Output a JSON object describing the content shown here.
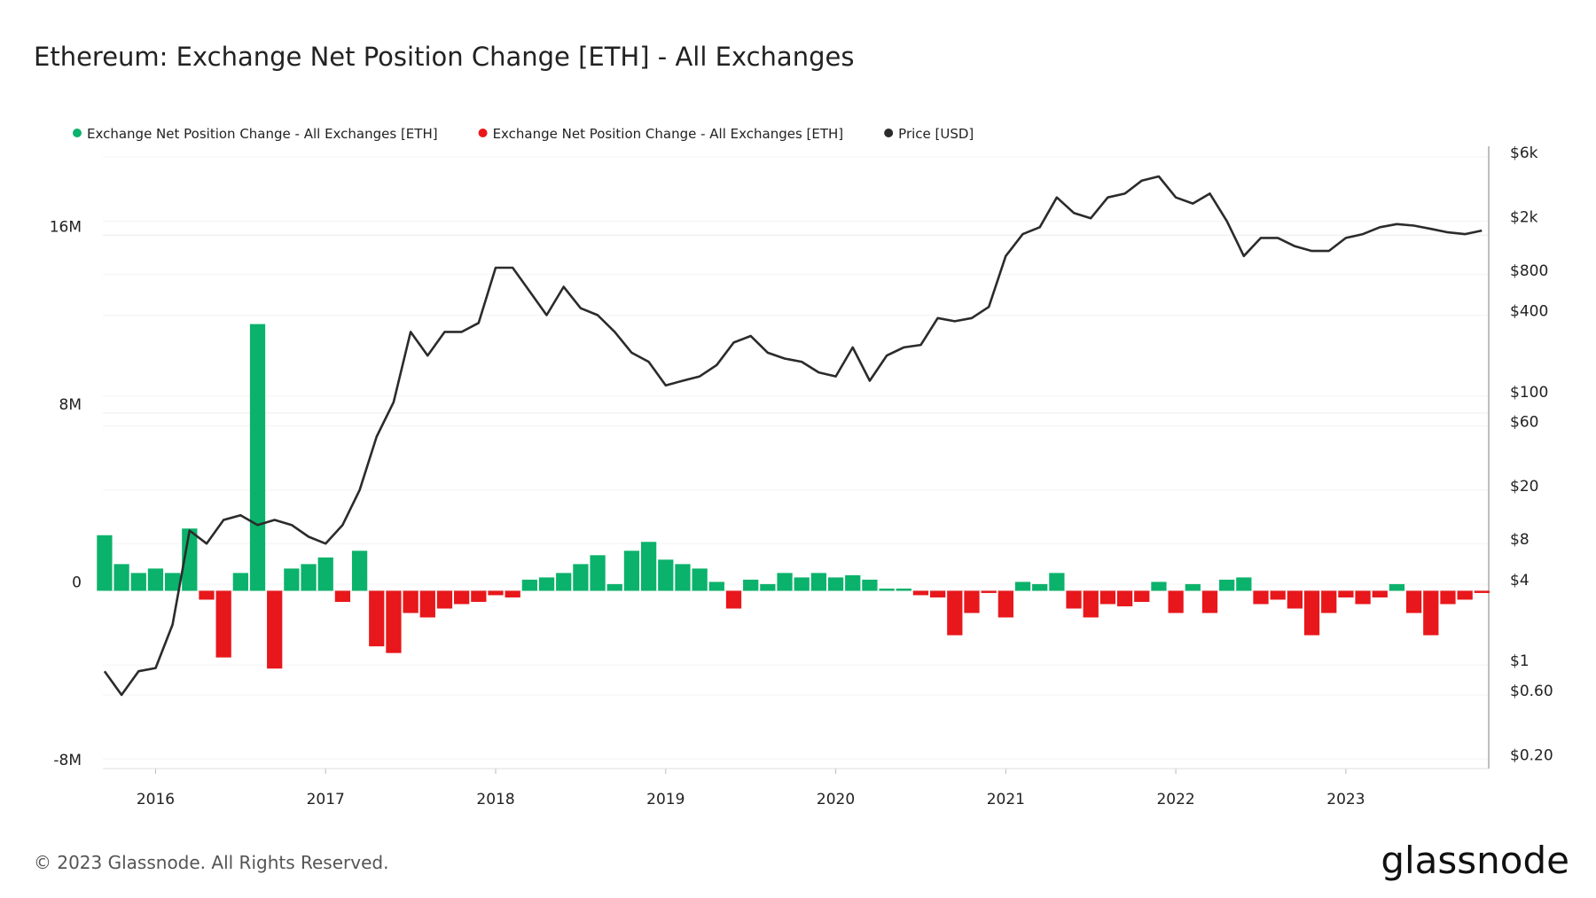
{
  "chart_data": {
    "type": "bar-line",
    "title": "Ethereum: Exchange Net Position Change [ETH] - All Exchanges",
    "footer": "© 2023 Glassnode. All Rights Reserved.",
    "brand": "glassnode",
    "x": [
      2015.7,
      2015.8,
      2015.9,
      2016.0,
      2016.1,
      2016.2,
      2016.3,
      2016.4,
      2016.5,
      2016.6,
      2016.7,
      2016.8,
      2016.9,
      2017.0,
      2017.1,
      2017.2,
      2017.3,
      2017.4,
      2017.5,
      2017.6,
      2017.7,
      2017.8,
      2017.9,
      2018.0,
      2018.1,
      2018.2,
      2018.3,
      2018.4,
      2018.5,
      2018.6,
      2018.7,
      2018.8,
      2018.9,
      2019.0,
      2019.1,
      2019.2,
      2019.3,
      2019.4,
      2019.5,
      2019.6,
      2019.7,
      2019.8,
      2019.9,
      2020.0,
      2020.1,
      2020.2,
      2020.3,
      2020.4,
      2020.5,
      2020.6,
      2020.7,
      2020.8,
      2020.9,
      2021.0,
      2021.1,
      2021.2,
      2021.3,
      2021.4,
      2021.5,
      2021.6,
      2021.7,
      2021.8,
      2021.9,
      2022.0,
      2022.1,
      2022.2,
      2022.3,
      2022.4,
      2022.5,
      2022.6,
      2022.7,
      2022.8,
      2022.9,
      2023.0,
      2023.1,
      2023.2,
      2023.3,
      2023.4,
      2023.5,
      2023.6,
      2023.7,
      2023.8
    ],
    "series": [
      {
        "name": "Exchange Net Position Change - All Exchanges [ETH]",
        "color": "#0bb26b",
        "axis": "y",
        "values": [
          2500000,
          1200000,
          800000,
          1000000,
          800000,
          2800000,
          null,
          null,
          800000,
          12000000,
          null,
          1000000,
          1200000,
          1500000,
          null,
          1800000,
          null,
          null,
          null,
          null,
          null,
          null,
          null,
          null,
          null,
          500000,
          600000,
          800000,
          1200000,
          1600000,
          300000,
          1800000,
          2200000,
          1400000,
          1200000,
          1000000,
          400000,
          null,
          500000,
          300000,
          800000,
          600000,
          800000,
          600000,
          700000,
          500000,
          100000,
          100000,
          null,
          null,
          null,
          null,
          null,
          null,
          400000,
          300000,
          800000,
          null,
          null,
          null,
          null,
          null,
          400000,
          null,
          300000,
          null,
          500000,
          600000,
          null,
          null,
          null,
          null,
          null,
          null,
          null,
          null,
          300000,
          null,
          null,
          null,
          null,
          null
        ]
      },
      {
        "name": "Exchange Net Position Change - All Exchanges [ETH]",
        "color": "#e8171b",
        "axis": "y",
        "values": [
          null,
          null,
          null,
          null,
          null,
          null,
          -400000,
          -3000000,
          null,
          null,
          -3500000,
          null,
          null,
          null,
          -500000,
          null,
          -2500000,
          -2800000,
          -1000000,
          -1200000,
          -800000,
          -600000,
          -500000,
          -200000,
          -300000,
          null,
          null,
          null,
          null,
          null,
          null,
          null,
          null,
          null,
          null,
          null,
          null,
          -800000,
          null,
          null,
          null,
          null,
          null,
          null,
          null,
          null,
          null,
          null,
          -200000,
          -300000,
          -2000000,
          -1000000,
          -100000,
          -1200000,
          null,
          null,
          null,
          -800000,
          -1200000,
          -600000,
          -700000,
          -500000,
          null,
          -1000000,
          null,
          -1000000,
          null,
          null,
          -600000,
          -400000,
          -800000,
          -2000000,
          -1000000,
          -300000,
          -600000,
          -300000,
          null,
          -1000000,
          -2000000,
          -600000,
          -400000,
          -100000
        ]
      },
      {
        "name": "Price [USD]",
        "color": "#2b2b2b",
        "axis": "y2",
        "values": [
          0.9,
          0.6,
          0.9,
          0.95,
          2,
          10,
          8,
          12,
          13,
          11,
          12,
          11,
          9,
          8,
          11,
          20,
          50,
          90,
          300,
          200,
          300,
          300,
          350,
          900,
          900,
          600,
          400,
          650,
          450,
          400,
          300,
          210,
          180,
          120,
          130,
          140,
          170,
          250,
          280,
          210,
          190,
          180,
          150,
          140,
          230,
          130,
          200,
          230,
          240,
          380,
          360,
          380,
          460,
          1100,
          1600,
          1800,
          3000,
          2300,
          2100,
          3000,
          3200,
          4000,
          4300,
          3000,
          2700,
          3200,
          2000,
          1100,
          1500,
          1500,
          1300,
          1200,
          1200,
          1500,
          1600,
          1800,
          1900,
          1850,
          1750,
          1650,
          1600,
          1700
        ]
      }
    ],
    "xlim": [
      2015.69,
      2023.84
    ],
    "xticks": [
      2016,
      2017,
      2018,
      2019,
      2020,
      2021,
      2022,
      2023
    ],
    "ylim": [
      -8000000,
      20000000
    ],
    "yticks": [
      {
        "value": -8000000,
        "label": "-8M"
      },
      0,
      {
        "value": 8000000,
        "label": "8M"
      },
      {
        "value": 16000000,
        "label": "16M"
      }
    ],
    "y2lim": [
      0.17,
      7200
    ],
    "y2ticks": [
      {
        "value": 0.2,
        "label": "$0.20"
      },
      {
        "value": 0.6,
        "label": "$0.60"
      },
      {
        "value": 1,
        "label": "$1"
      },
      {
        "value": 4,
        "label": "$4"
      },
      {
        "value": 8,
        "label": "$8"
      },
      {
        "value": 20,
        "label": "$20"
      },
      {
        "value": 60,
        "label": "$60"
      },
      {
        "value": 100,
        "label": "$100"
      },
      {
        "value": 400,
        "label": "$400"
      },
      {
        "value": 800,
        "label": "$800"
      },
      {
        "value": 2000,
        "label": "$2k"
      },
      {
        "value": 6000,
        "label": "$6k"
      }
    ],
    "y2log": true,
    "grid": true
  }
}
